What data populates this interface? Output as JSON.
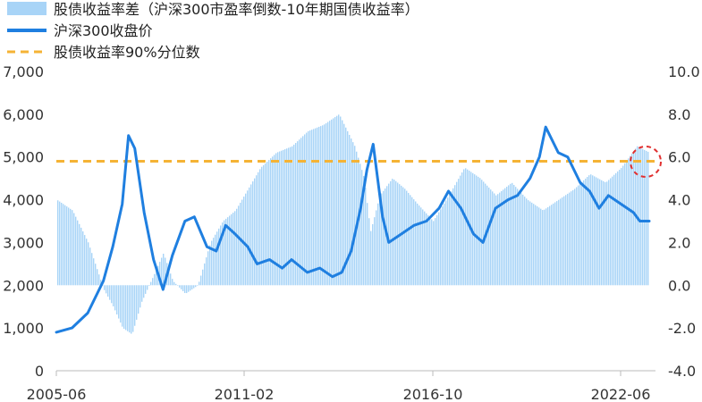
{
  "chart_data": {
    "type": "line",
    "legend_position": "top-left",
    "legend": {
      "spread": "股债收益率差（沪深300市盈率倒数-10年期国债收益率）",
      "index": "沪深300收盘价",
      "percentile": "股债收益率90%分位数"
    },
    "x_ticks": [
      "2005-06",
      "2011-02",
      "2016-10",
      "2022-06"
    ],
    "left_axis": {
      "ylim": [
        0,
        7000
      ],
      "ticks": [
        "0",
        "1,000",
        "2,000",
        "3,000",
        "4,000",
        "5,000",
        "6,000",
        "7,000"
      ]
    },
    "right_axis": {
      "ylim": [
        -4,
        10
      ],
      "ticks": [
        "-4.0",
        "-2.0",
        "0.0",
        "2.0",
        "4.0",
        "6.0",
        "8.0",
        "10.0"
      ]
    },
    "percentile_value": 5.8,
    "series": [
      {
        "name": "沪深300收盘价",
        "axis": "left",
        "color": "#1f7fe0",
        "x": [
          2005.5,
          2006.0,
          2006.5,
          2007.0,
          2007.3,
          2007.6,
          2007.8,
          2008.0,
          2008.3,
          2008.6,
          2008.9,
          2009.2,
          2009.6,
          2009.9,
          2010.3,
          2010.6,
          2010.9,
          2011.2,
          2011.6,
          2011.9,
          2012.3,
          2012.7,
          2013.0,
          2013.5,
          2013.9,
          2014.3,
          2014.6,
          2014.9,
          2015.2,
          2015.4,
          2015.6,
          2015.9,
          2016.1,
          2016.5,
          2016.9,
          2017.3,
          2017.7,
          2018.0,
          2018.4,
          2018.8,
          2019.1,
          2019.5,
          2019.9,
          2020.2,
          2020.6,
          2020.9,
          2021.1,
          2021.5,
          2021.8,
          2022.2,
          2022.5,
          2022.8,
          2023.1,
          2023.5,
          2023.9,
          2024.1,
          2024.4
        ],
        "values": [
          900,
          1000,
          1350,
          2100,
          2900,
          3900,
          5500,
          5200,
          3700,
          2600,
          1900,
          2700,
          3500,
          3600,
          2900,
          2800,
          3400,
          3200,
          2900,
          2500,
          2600,
          2400,
          2600,
          2300,
          2400,
          2200,
          2300,
          2800,
          3800,
          4700,
          5300,
          3600,
          3000,
          3200,
          3400,
          3500,
          3800,
          4200,
          3800,
          3200,
          3000,
          3800,
          4000,
          4100,
          4500,
          5000,
          5700,
          5100,
          5000,
          4400,
          4200,
          3800,
          4100,
          3900,
          3700,
          3500,
          3500
        ]
      },
      {
        "name": "股债收益率差（沪深300市盈率倒数-10年期国债收益率）",
        "axis": "right",
        "color": "#a8d4f7",
        "x": [
          2005.5,
          2006.0,
          2006.5,
          2007.0,
          2007.3,
          2007.6,
          2007.9,
          2008.2,
          2008.6,
          2008.9,
          2009.2,
          2009.6,
          2010.0,
          2010.4,
          2010.8,
          2011.2,
          2011.6,
          2012.0,
          2012.5,
          2013.0,
          2013.5,
          2014.0,
          2014.5,
          2015.0,
          2015.3,
          2015.5,
          2015.8,
          2016.2,
          2016.6,
          2017.0,
          2017.5,
          2018.0,
          2018.5,
          2019.0,
          2019.5,
          2020.0,
          2020.5,
          2021.0,
          2021.5,
          2022.0,
          2022.5,
          2023.0,
          2023.5,
          2024.0,
          2024.4
        ],
        "values": [
          4.0,
          3.5,
          2.0,
          -0.2,
          -1.0,
          -2.0,
          -2.3,
          -0.8,
          0.5,
          1.5,
          0.2,
          -0.4,
          0.0,
          2.0,
          3.0,
          3.5,
          4.5,
          5.5,
          6.2,
          6.5,
          7.2,
          7.5,
          8.0,
          6.5,
          5.0,
          2.5,
          4.2,
          5.0,
          4.5,
          3.8,
          3.0,
          4.2,
          5.5,
          5.0,
          4.2,
          4.8,
          4.0,
          3.5,
          4.0,
          4.5,
          5.2,
          4.8,
          5.5,
          6.5,
          6.2
        ]
      },
      {
        "name": "股债收益率90%分位数",
        "axis": "right",
        "color": "#f5b335",
        "values": [
          5.8
        ]
      }
    ]
  }
}
